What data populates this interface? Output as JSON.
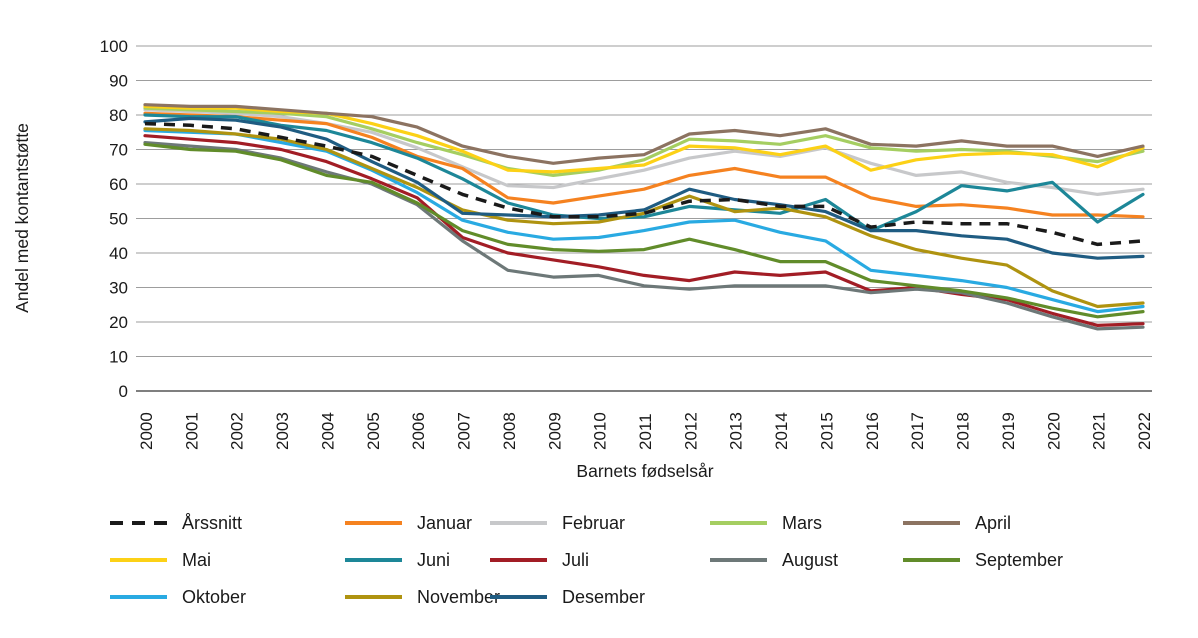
{
  "colors": {
    "text": "#1a1a1a",
    "grid": "#9d9d9d",
    "axis": "#7f7f7f",
    "background": "#ffffff"
  },
  "chart_data": {
    "type": "line",
    "title": "",
    "xlabel": "Barnets fødselsår",
    "ylabel": "Andel med kontantstøtte",
    "ylim": [
      0,
      100
    ],
    "yticks": [
      0,
      10,
      20,
      30,
      40,
      50,
      60,
      70,
      80,
      90,
      100
    ],
    "grid": true,
    "legend_position": "bottom",
    "years": [
      2000,
      2001,
      2002,
      2003,
      2004,
      2005,
      2006,
      2007,
      2008,
      2009,
      2010,
      2011,
      2012,
      2013,
      2014,
      2015,
      2016,
      2017,
      2018,
      2019,
      2020,
      2021,
      2022
    ],
    "series": [
      {
        "name": "Årssnitt",
        "color": "#1a1a1a",
        "dashed": true,
        "values": [
          77.5,
          77,
          76,
          73.5,
          71,
          68,
          62.5,
          57,
          53,
          50.5,
          50.5,
          51.5,
          55,
          55.5,
          53.5,
          53.5,
          47.5,
          49,
          48.5,
          48.5,
          46,
          42.5,
          43.5
        ]
      },
      {
        "name": "Januar",
        "color": "#f58220",
        "dashed": false,
        "values": [
          80.5,
          80,
          79.5,
          78.5,
          77.5,
          73.5,
          68,
          64.5,
          56,
          54.5,
          56.5,
          58.5,
          62.5,
          64.5,
          62,
          62,
          56,
          53.5,
          54,
          53,
          51,
          51,
          50.5
        ]
      },
      {
        "name": "Februar",
        "color": "#c7c8ca",
        "dashed": false,
        "values": [
          81.5,
          81,
          80.5,
          79.5,
          77.5,
          75,
          70.5,
          65,
          59.5,
          59,
          61.5,
          64,
          67.5,
          69.5,
          68,
          70.5,
          66,
          62.5,
          63.5,
          60.5,
          59,
          57,
          58.5
        ]
      },
      {
        "name": "Mars",
        "color": "#a5ce61",
        "dashed": false,
        "values": [
          82,
          81.5,
          81,
          80.5,
          79.5,
          76,
          72,
          68.5,
          64.5,
          62.5,
          64,
          67,
          73,
          72.5,
          71.5,
          74,
          70.5,
          69.5,
          70,
          69.5,
          68,
          66.5,
          69.5
        ]
      },
      {
        "name": "April",
        "color": "#8c7361",
        "dashed": false,
        "values": [
          83,
          82.5,
          82.5,
          81.5,
          80.5,
          79.5,
          76.5,
          71,
          68,
          66,
          67.5,
          68.5,
          74.5,
          75.5,
          74,
          76,
          71.5,
          71,
          72.5,
          71,
          71,
          68,
          71
        ]
      },
      {
        "name": "Mai",
        "color": "#fcd116",
        "dashed": false,
        "values": [
          82.5,
          82,
          82,
          81,
          80.5,
          77.5,
          74,
          69.5,
          64,
          63.5,
          64.5,
          65.5,
          71,
          70.5,
          68.5,
          71,
          64,
          67,
          68.5,
          69,
          68.5,
          65,
          70.5
        ]
      },
      {
        "name": "Juni",
        "color": "#1d8798",
        "dashed": false,
        "values": [
          80,
          79.5,
          79.5,
          77,
          75.5,
          72,
          67.5,
          61.5,
          54.5,
          51,
          50,
          50.5,
          53.5,
          52.5,
          51.5,
          55.5,
          46.5,
          52,
          59.5,
          58,
          60.5,
          49,
          57
        ]
      },
      {
        "name": "Juli",
        "color": "#a21d25",
        "dashed": false,
        "values": [
          74,
          73,
          72,
          70,
          66.5,
          61.5,
          56,
          44.5,
          40,
          38,
          36,
          33.5,
          32,
          34.5,
          33.5,
          34.5,
          29,
          30,
          28,
          26.5,
          22.5,
          19,
          19.5
        ]
      },
      {
        "name": "August",
        "color": "#6d7878",
        "dashed": false,
        "values": [
          72,
          71,
          70,
          67.5,
          63.5,
          60,
          54,
          43.5,
          35,
          33,
          33.5,
          30.5,
          29.5,
          30.5,
          30.5,
          30.5,
          28.5,
          29.5,
          28.5,
          25.5,
          21.5,
          18,
          18.5
        ]
      },
      {
        "name": "September",
        "color": "#618c2a",
        "dashed": false,
        "values": [
          71.5,
          70,
          69.5,
          67,
          62.5,
          60.5,
          54.5,
          46.5,
          42.5,
          41,
          40.5,
          41,
          44,
          41,
          37.5,
          37.5,
          32,
          30.5,
          29,
          27,
          24,
          21.5,
          23
        ]
      },
      {
        "name": "Oktober",
        "color": "#29aae2",
        "dashed": false,
        "values": [
          75.5,
          75,
          74.5,
          72,
          69.5,
          64,
          57.5,
          49.5,
          46,
          44,
          44.5,
          46.5,
          49,
          49.5,
          46,
          43.5,
          35,
          33.5,
          32,
          30,
          26.5,
          23,
          24.5
        ]
      },
      {
        "name": "November",
        "color": "#af9310",
        "dashed": false,
        "values": [
          76,
          75.5,
          74.5,
          73,
          70,
          64.5,
          59,
          52.5,
          49.5,
          48.5,
          49,
          51.5,
          56.5,
          52,
          53,
          50.5,
          45,
          41,
          38.5,
          36.5,
          29,
          24.5,
          25.5
        ]
      },
      {
        "name": "Desember",
        "color": "#1f5c82",
        "dashed": false,
        "values": [
          78,
          79,
          78.5,
          76.5,
          73,
          66.5,
          60.5,
          51.5,
          51,
          50.5,
          51,
          52.5,
          58.5,
          55.5,
          54,
          52,
          46.5,
          46.5,
          45,
          44,
          40,
          38.5,
          39
        ]
      }
    ]
  }
}
